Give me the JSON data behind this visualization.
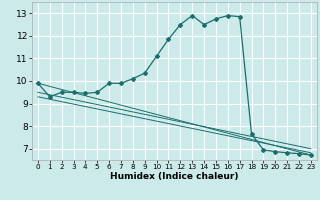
{
  "xlabel": "Humidex (Indice chaleur)",
  "bg_color": "#cceaea",
  "grid_color": "#ffffff",
  "line_color": "#1a6e6e",
  "xlim": [
    -0.5,
    23.5
  ],
  "ylim": [
    6.5,
    13.5
  ],
  "yticks": [
    7,
    8,
    9,
    10,
    11,
    12,
    13
  ],
  "xticks": [
    0,
    1,
    2,
    3,
    4,
    5,
    6,
    7,
    8,
    9,
    10,
    11,
    12,
    13,
    14,
    15,
    16,
    17,
    18,
    19,
    20,
    21,
    22,
    23
  ],
  "main_line_x": [
    0,
    1,
    2,
    3,
    4,
    5,
    6,
    7,
    8,
    9,
    10,
    11,
    12,
    13,
    14,
    15,
    16,
    17,
    18,
    19,
    20,
    21,
    22,
    23
  ],
  "main_line_y": [
    9.9,
    9.3,
    9.5,
    9.5,
    9.45,
    9.5,
    9.9,
    9.9,
    10.1,
    10.35,
    11.1,
    11.85,
    12.5,
    12.9,
    12.5,
    12.75,
    12.9,
    12.85,
    7.65,
    6.95,
    6.87,
    6.82,
    6.78,
    6.72
  ],
  "line3_x": [
    0,
    23
  ],
  "line3_y": [
    9.9,
    6.72
  ],
  "line4_x": [
    0,
    23
  ],
  "line4_y": [
    9.5,
    7.0
  ],
  "line5_x": [
    0,
    23
  ],
  "line5_y": [
    9.3,
    6.82
  ],
  "xlabel_fontsize": 6.5,
  "xlabel_fontweight": "bold",
  "tick_fontsize_x": 5.2,
  "tick_fontsize_y": 6.5
}
